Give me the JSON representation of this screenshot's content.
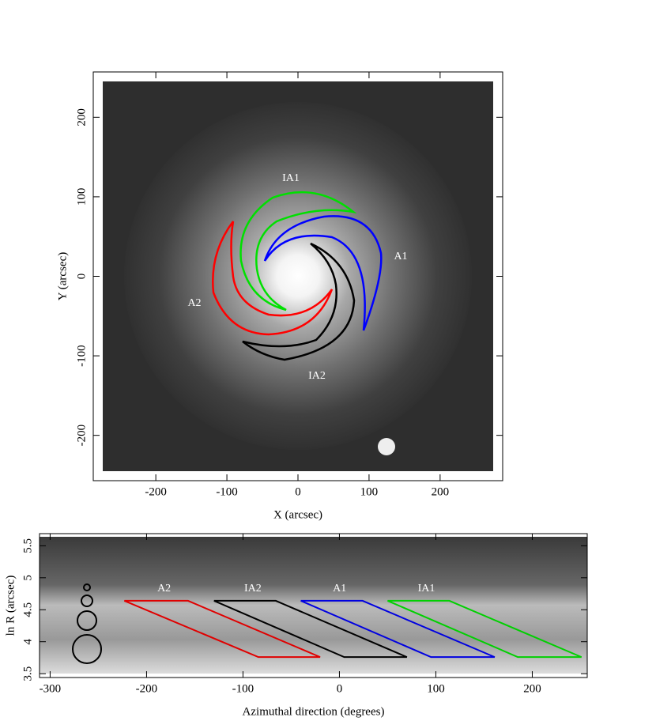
{
  "chart_data": [
    {
      "type": "image",
      "xlabel": "X (arcsec)",
      "ylabel": "Y (arcsec)",
      "xlim": [
        -288,
        288
      ],
      "ylim": [
        -257,
        257
      ],
      "xticks": [
        -200,
        -100,
        0,
        100,
        200
      ],
      "yticks": [
        -200,
        -100,
        0,
        100,
        200
      ],
      "annotations": [
        "IA1",
        "A1",
        "A2",
        "IA2"
      ]
    },
    {
      "type": "regions",
      "xlabel": "Azimuthal direction (degrees)",
      "ylabel": "ln R (arcsec)",
      "xlim": [
        -311,
        257
      ],
      "ylim": [
        3.44,
        5.69
      ],
      "xticks": [
        -300,
        -200,
        -100,
        0,
        100,
        200
      ],
      "yticks": [
        3.5,
        4,
        4.5,
        5,
        5.5
      ],
      "regions": [
        {
          "name": "A2",
          "color": "#e00000",
          "x": [
            -223,
            -157,
            -20,
            -84
          ],
          "y": [
            4.64,
            4.64,
            3.76,
            3.76
          ]
        },
        {
          "name": "IA2",
          "color": "#000000",
          "x": [
            -130,
            -66,
            70,
            5
          ],
          "y": [
            4.64,
            4.64,
            3.76,
            3.76
          ]
        },
        {
          "name": "A1",
          "color": "#0000e0",
          "x": [
            -40,
            24,
            161,
            95
          ],
          "y": [
            4.64,
            4.64,
            3.76,
            3.76
          ]
        },
        {
          "name": "IA1",
          "color": "#00d000",
          "x": [
            50,
            114,
            251,
            185
          ],
          "y": [
            4.64,
            4.64,
            3.76,
            3.76
          ]
        }
      ]
    }
  ]
}
